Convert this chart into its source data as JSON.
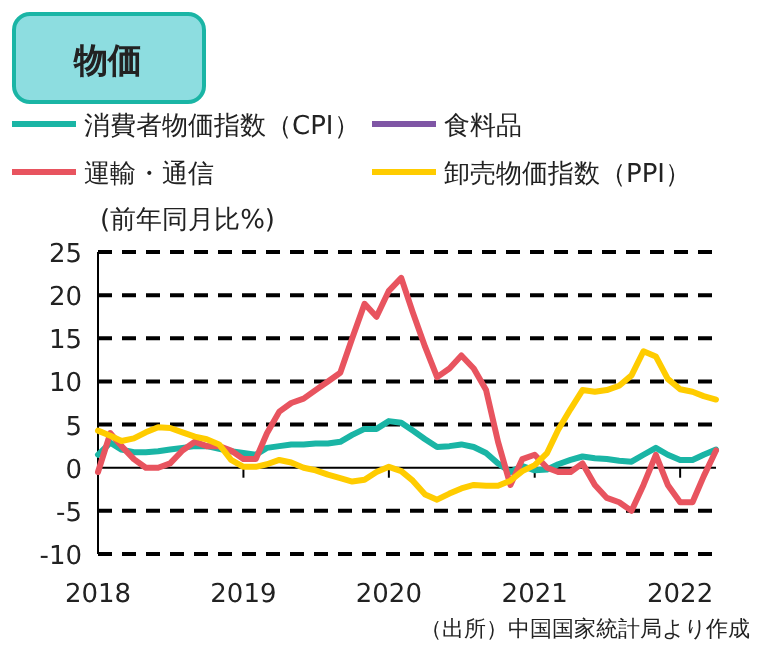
{
  "chart_data": {
    "type": "line",
    "title": "物価",
    "ylabel": "(前年同月比%)",
    "annotations": [
      "（出所）中国国家統計局より作成"
    ],
    "x": [
      "2018-01",
      "2018-02",
      "2018-03",
      "2018-04",
      "2018-05",
      "2018-06",
      "2018-07",
      "2018-08",
      "2018-09",
      "2018-10",
      "2018-11",
      "2018-12",
      "2019-01",
      "2019-02",
      "2019-03",
      "2019-04",
      "2019-05",
      "2019-06",
      "2019-07",
      "2019-08",
      "2019-09",
      "2019-10",
      "2019-11",
      "2019-12",
      "2020-01",
      "2020-02",
      "2020-03",
      "2020-04",
      "2020-05",
      "2020-06",
      "2020-07",
      "2020-08",
      "2020-09",
      "2020-10",
      "2020-11",
      "2020-12",
      "2021-01",
      "2021-02",
      "2021-03",
      "2021-04",
      "2021-05",
      "2021-06",
      "2021-07",
      "2021-08",
      "2021-09",
      "2021-10",
      "2021-11",
      "2021-12",
      "2022-01",
      "2022-02",
      "2022-03",
      "2022-04"
    ],
    "series": [
      {
        "name": "消費者物価指数（CPI）",
        "color": "#1ab5a5",
        "values": [
          1.5,
          2.9,
          2.1,
          1.8,
          1.8,
          1.9,
          2.1,
          2.3,
          2.5,
          2.5,
          2.2,
          1.9,
          1.7,
          1.5,
          2.3,
          2.5,
          2.7,
          2.7,
          2.8,
          2.8,
          3,
          3.8,
          4.5,
          4.5,
          5.4,
          5.2,
          4.3,
          3.3,
          2.4,
          2.5,
          2.7,
          2.4,
          1.7,
          0.5,
          -0.5,
          0.2,
          -0.3,
          -0.2,
          0.4,
          0.9,
          1.3,
          1.1,
          1,
          0.8,
          0.7,
          1.5,
          2.3,
          1.5,
          0.9,
          0.9,
          1.5,
          2.1
        ]
      },
      {
        "name": "食料品",
        "color": "#7f56a5",
        "values": [
          null,
          null,
          null,
          null,
          null,
          null,
          null,
          null,
          null,
          null,
          null,
          null,
          null,
          null,
          null,
          null,
          null,
          null,
          null,
          null,
          null,
          null,
          null,
          null,
          null,
          null,
          null,
          null,
          null,
          null,
          null,
          null,
          null,
          null,
          null,
          null,
          null,
          null,
          null,
          null,
          null,
          null,
          null,
          null,
          null,
          null,
          null,
          null,
          null,
          null,
          null,
          null
        ]
      },
      {
        "name": "運輸・通信",
        "color": "#e8545f",
        "values": [
          -0.5,
          4,
          2.5,
          1,
          0,
          0,
          0.5,
          2,
          3,
          2.5,
          2.5,
          2,
          1,
          1,
          4,
          6.5,
          7.5,
          8,
          9,
          10,
          11,
          15,
          19,
          17.5,
          20.5,
          22,
          18,
          14,
          10.5,
          11.5,
          13,
          11.5,
          9,
          3,
          -2,
          1,
          1.5,
          0,
          -0.5,
          -0.5,
          0.5,
          -2,
          -3.5,
          -4,
          -5,
          -2,
          1.5,
          -2,
          -4,
          -4,
          -1,
          2
        ]
      },
      {
        "name": "卸売物価指数（PPI）",
        "color": "#ffcc00",
        "values": [
          4.3,
          3.7,
          3.1,
          3.4,
          4.1,
          4.7,
          4.6,
          4.1,
          3.6,
          3.3,
          2.7,
          0.9,
          0.1,
          0.1,
          0.4,
          0.9,
          0.6,
          0,
          -0.3,
          -0.8,
          -1.2,
          -1.6,
          -1.4,
          -0.5,
          0.1,
          -0.4,
          -1.5,
          -3.1,
          -3.7,
          -3,
          -2.4,
          -2,
          -2.1,
          -2.1,
          -1.5,
          -0.4,
          0.3,
          1.7,
          4.4,
          6.8,
          9,
          8.8,
          9,
          9.5,
          10.7,
          13.5,
          12.9,
          10.3,
          9.1,
          8.8,
          8.3,
          7.9
        ]
      }
    ],
    "xlim": [
      "2018-01",
      "2022-04"
    ],
    "xticks": [
      {
        "value": "2018-01",
        "label": "2018"
      },
      {
        "value": "2019-01",
        "label": "2019"
      },
      {
        "value": "2020-01",
        "label": "2020"
      },
      {
        "value": "2021-01",
        "label": "2021"
      },
      {
        "value": "2022-01",
        "label": "2022"
      }
    ],
    "ylim": [
      -10,
      25
    ],
    "yticks": [
      -10,
      -5,
      0,
      5,
      10,
      15,
      20,
      25
    ],
    "grid": "y",
    "legend": "top",
    "marker": "none",
    "line_style": "solid"
  }
}
